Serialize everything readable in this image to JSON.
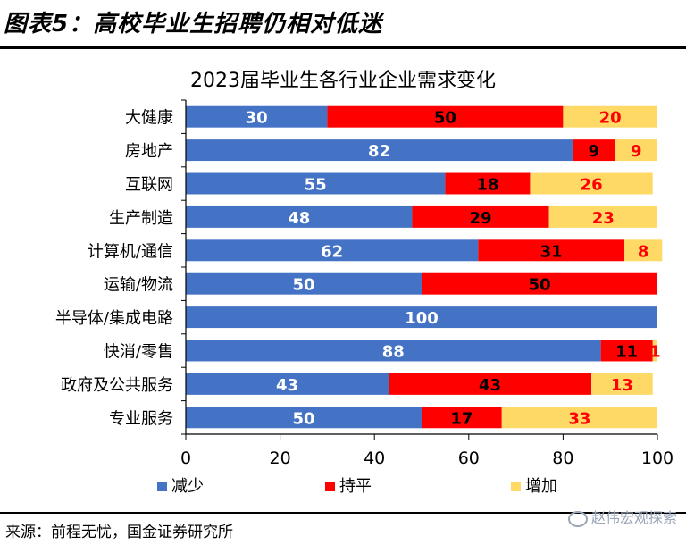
{
  "header": {
    "title": "图表5：高校毕业生招聘仍相对低迷"
  },
  "source": "来源：前程无忧，国金证券研究所",
  "watermark": "赵伟宏观探索",
  "colors": {
    "decrease": "#4472c4",
    "flat": "#ff0000",
    "increase": "#ffd966"
  },
  "chart_data": {
    "type": "bar",
    "orientation": "horizontal",
    "stacked": true,
    "title": "2023届毕业生各行业企业需求变化",
    "categories": [
      "大健康",
      "房地产",
      "互联网",
      "生产制造",
      "计算机/通信",
      "运输/物流",
      "半导体/集成电路",
      "快消/零售",
      "政府及公共服务",
      "专业服务"
    ],
    "series": [
      {
        "name": "减少",
        "values": [
          30,
          82,
          55,
          48,
          62,
          50,
          100,
          88,
          43,
          50
        ]
      },
      {
        "name": "持平",
        "values": [
          50,
          9,
          18,
          29,
          31,
          50,
          0,
          11,
          43,
          17
        ]
      },
      {
        "name": "增加",
        "values": [
          20,
          9,
          26,
          23,
          8,
          0,
          0,
          1,
          13,
          33
        ]
      }
    ],
    "xlim": [
      0,
      100
    ],
    "xticks": [
      0,
      20,
      40,
      60,
      80,
      100
    ],
    "legend_position": "bottom",
    "grid": false
  }
}
